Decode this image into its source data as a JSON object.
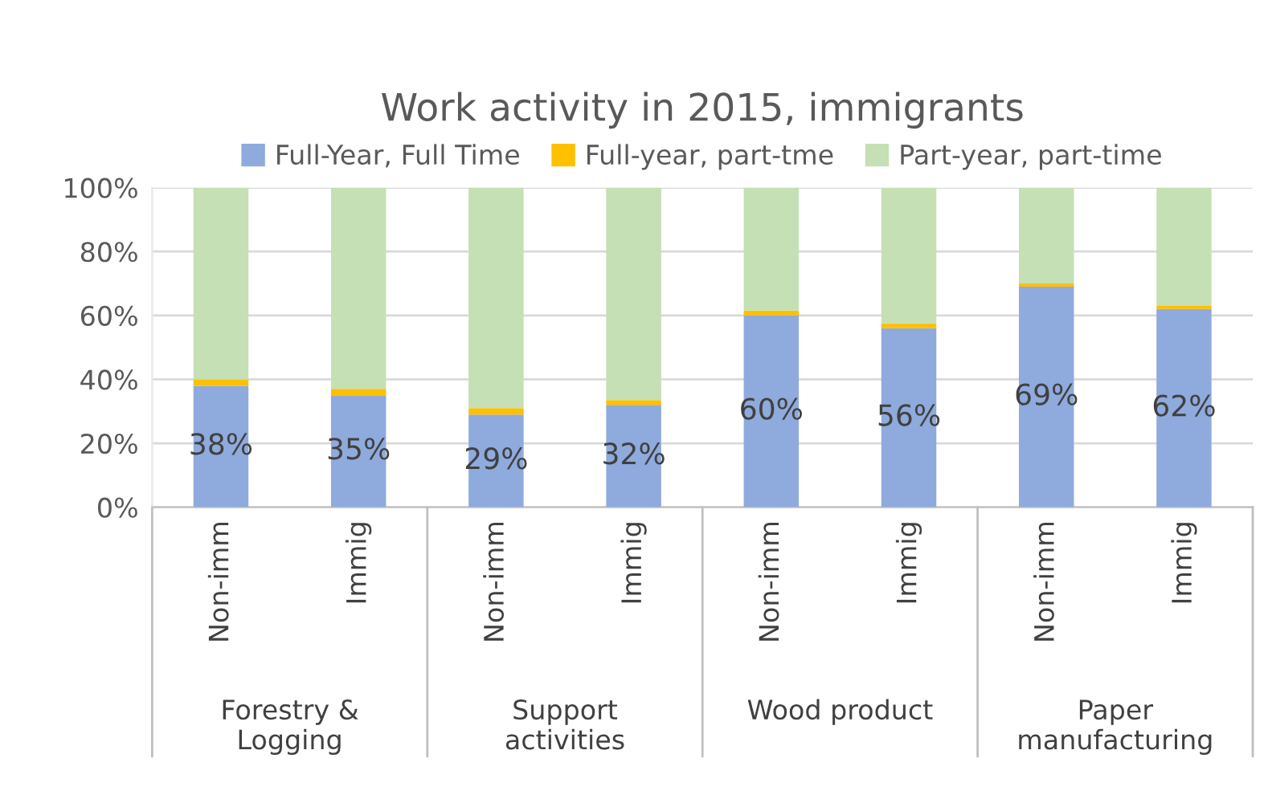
{
  "chart_data": {
    "type": "bar",
    "title": "Work activity in 2015, immigrants",
    "categories": [
      "Non-imm",
      "Immig",
      "Non-imm",
      "Immig",
      "Non-imm",
      "Immig",
      "Non-imm",
      "Immig"
    ],
    "stacked": true,
    "series": [
      {
        "name": "Full-Year, Full Time",
        "color": "#8faadc",
        "values": [
          38,
          35,
          29,
          32,
          60,
          56,
          69,
          62
        ],
        "value_labels": [
          "38%",
          "35%",
          "29%",
          "32%",
          "60%",
          "56%",
          "69%",
          "62%"
        ]
      },
      {
        "name": "Full-year, part-tme",
        "color": "#ffc000",
        "values": [
          2,
          2,
          2,
          1.5,
          1.5,
          1.5,
          1,
          1
        ]
      },
      {
        "name": "Part-year, part-time",
        "color": "#c5e0b4",
        "values": [
          60,
          63,
          69,
          66.5,
          38.5,
          42.5,
          30,
          37
        ]
      }
    ],
    "ylim": [
      0,
      100
    ],
    "yticks": [
      {
        "value": 0,
        "label": "0%"
      },
      {
        "value": 20,
        "label": "20%"
      },
      {
        "value": 40,
        "label": "40%"
      },
      {
        "value": 60,
        "label": "60%"
      },
      {
        "value": 80,
        "label": "80%"
      },
      {
        "value": 100,
        "label": "100%"
      }
    ],
    "grid": "y",
    "legend": "top",
    "annotations": [
      "Forestry &\nLogging",
      "Support\nactivities",
      "Wood product",
      "Paper\nmanufacturing"
    ]
  }
}
